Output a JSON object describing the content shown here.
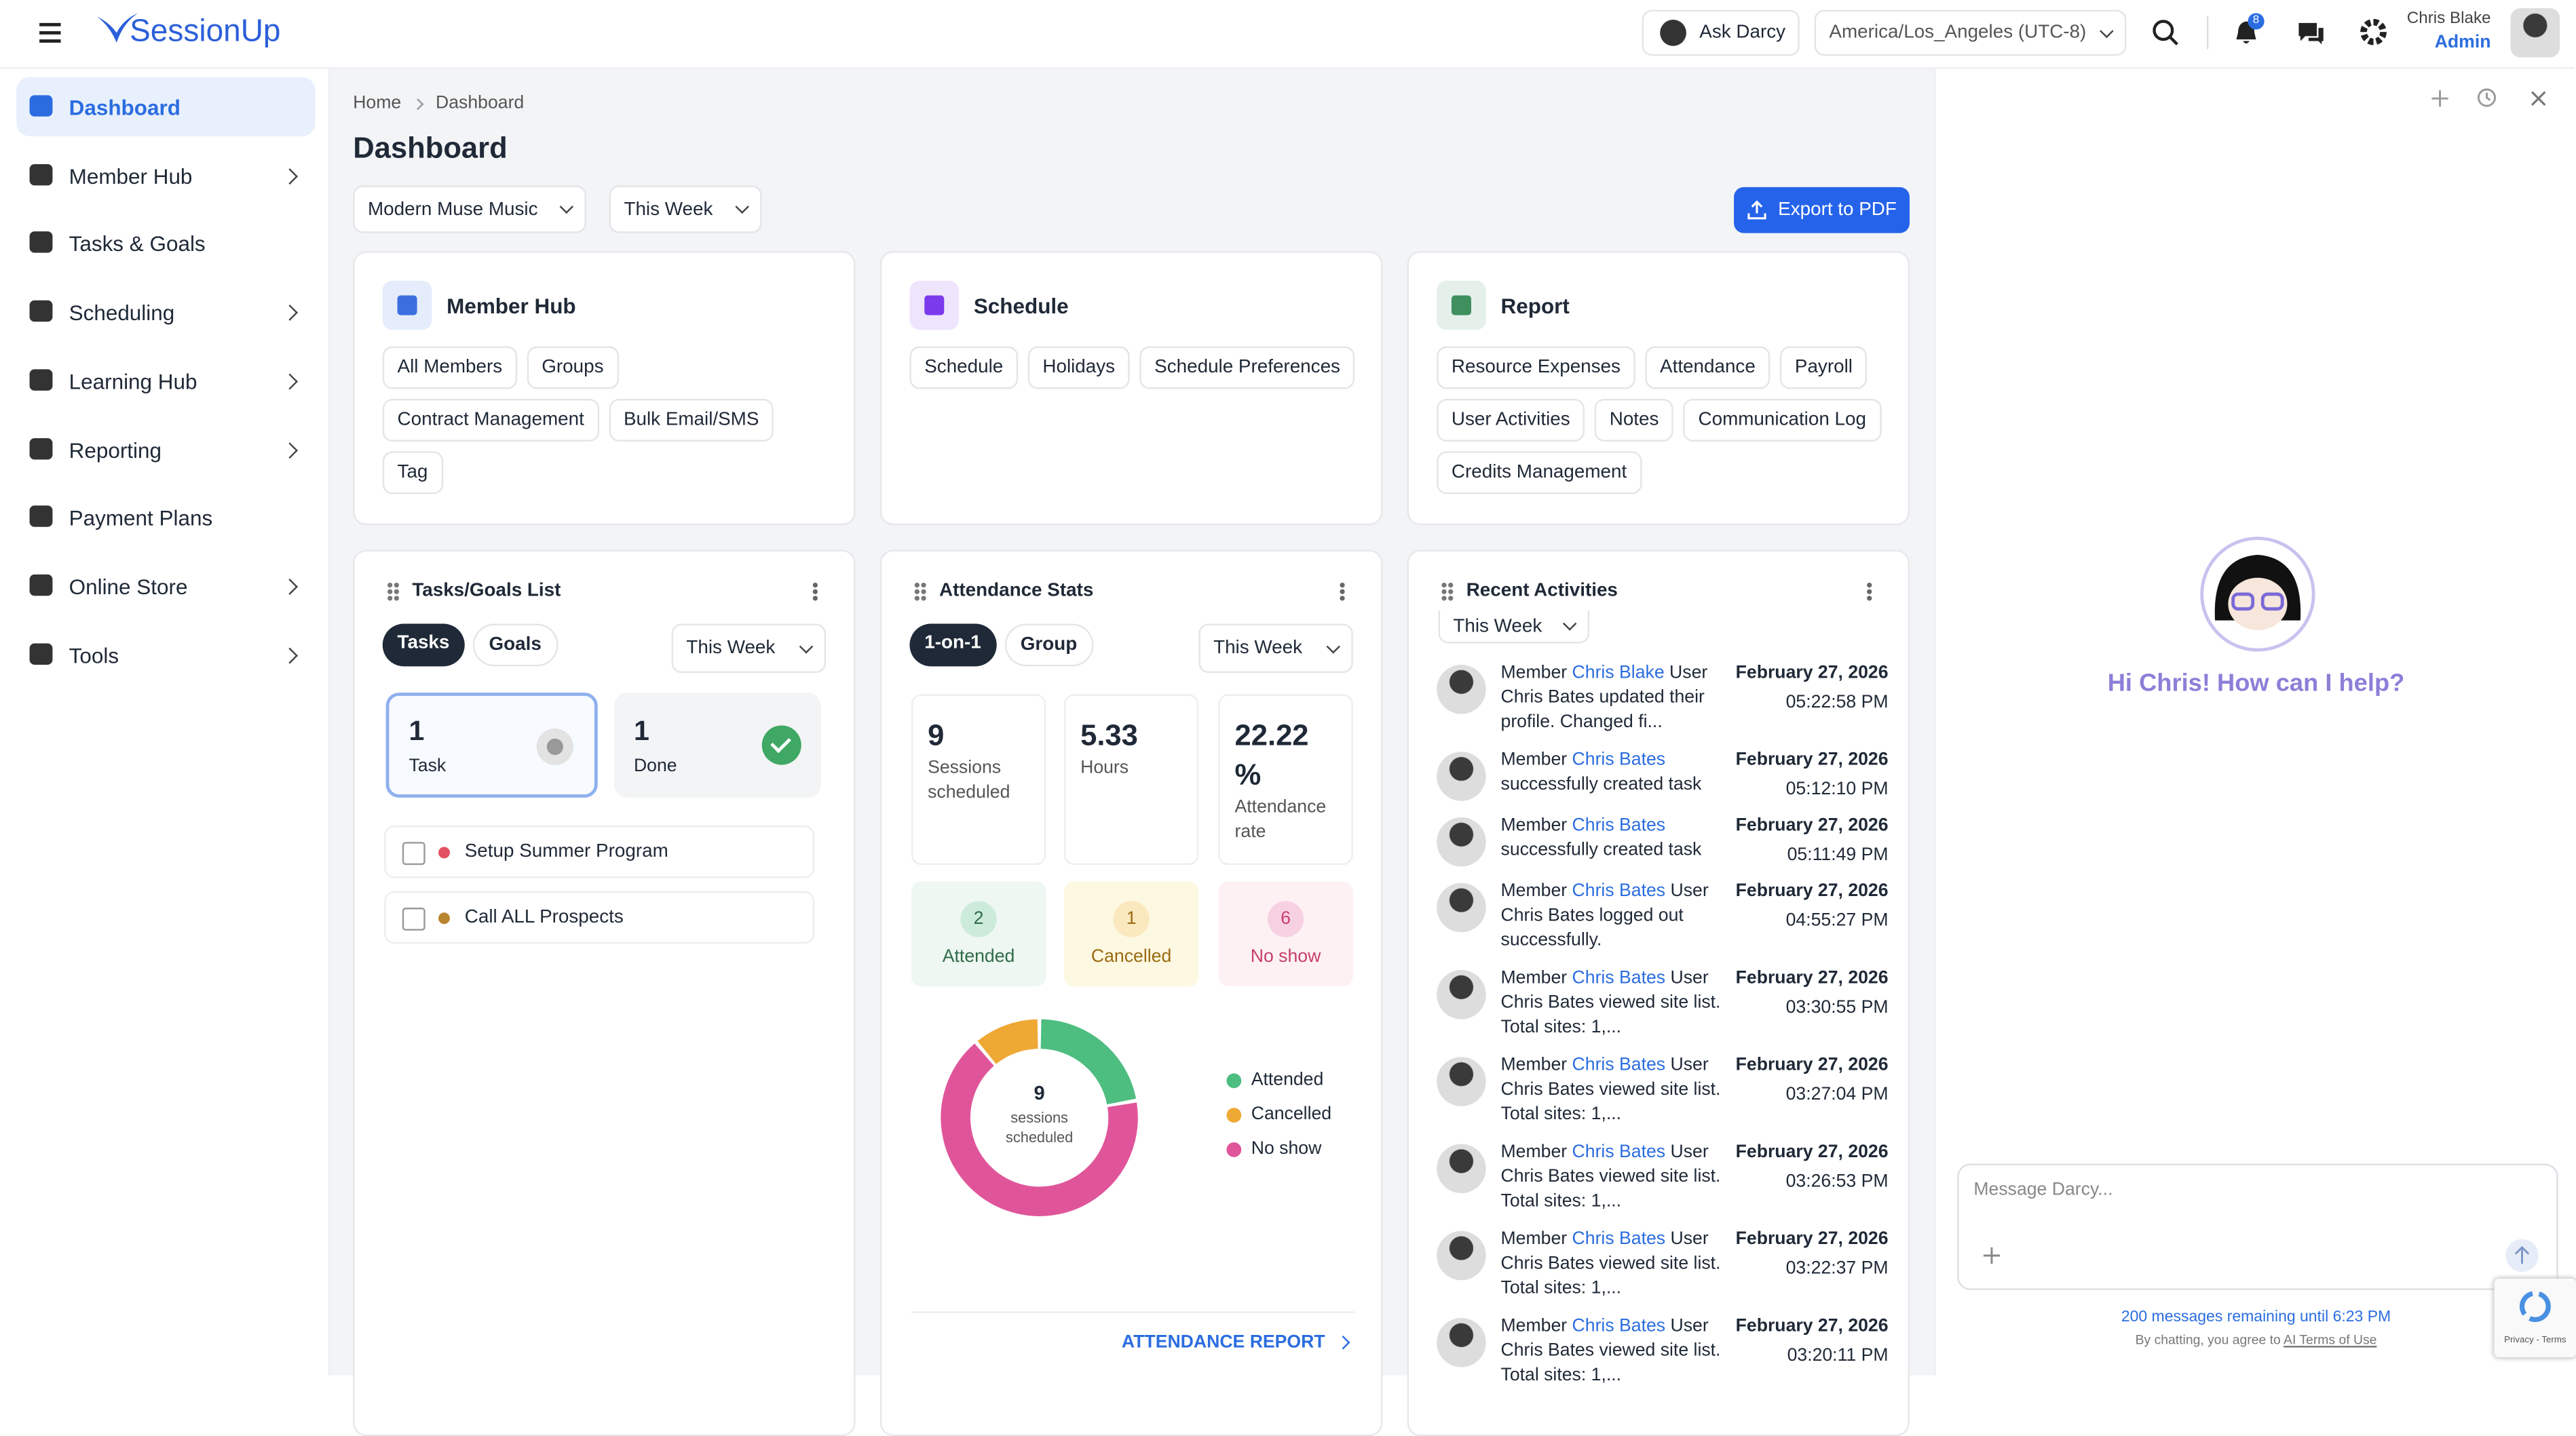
{
  "header": {
    "brand": "SessionUp",
    "ask": "Ask Darcy",
    "timezone": "America/Los_Angeles (UTC-8)",
    "notifications": 8,
    "user_name": "Chris Blake",
    "user_role": "Admin"
  },
  "sidebar": [
    {
      "label": "Dashboard",
      "active": true,
      "expandable": false
    },
    {
      "label": "Member Hub",
      "active": false,
      "expandable": true
    },
    {
      "label": "Tasks & Goals",
      "active": false,
      "expandable": false
    },
    {
      "label": "Scheduling",
      "active": false,
      "expandable": true
    },
    {
      "label": "Learning Hub",
      "active": false,
      "expandable": true
    },
    {
      "label": "Reporting",
      "active": false,
      "expandable": true
    },
    {
      "label": "Payment Plans",
      "active": false,
      "expandable": false
    },
    {
      "label": "Online Store",
      "active": false,
      "expandable": true
    },
    {
      "label": "Tools",
      "active": false,
      "expandable": true
    }
  ],
  "breadcrumb": [
    "Home",
    "Dashboard"
  ],
  "page_title": "Dashboard",
  "filters": {
    "organization": "Modern Muse Music",
    "period": "This Week",
    "export": "Export to PDF"
  },
  "quick_links": [
    {
      "title": "Member Hub",
      "color": "#3b6fe0",
      "links": [
        "All Members",
        "Groups",
        "Contract Management",
        "Bulk Email/SMS",
        "Tag"
      ]
    },
    {
      "title": "Schedule",
      "color": "#7c3aed",
      "links": [
        "Schedule",
        "Holidays",
        "Schedule Preferences"
      ]
    },
    {
      "title": "Report",
      "color": "#3f8f5f",
      "links": [
        "Resource Expenses",
        "Attendance",
        "Payroll",
        "User Activities",
        "Notes",
        "Communication Log",
        "Credits Management"
      ]
    }
  ],
  "tasks": {
    "title": "Tasks/Goals List",
    "tabs": [
      "Tasks",
      "Goals"
    ],
    "period": "This Week",
    "task_count": 1,
    "task_label": "Task",
    "done_count": 1,
    "done_label": "Done",
    "items": [
      {
        "label": "Setup Summer Program",
        "color": "#e05260"
      },
      {
        "label": "Call ALL Prospects",
        "color": "#b8862f"
      }
    ]
  },
  "attendance": {
    "title": "Attendance Stats",
    "tabs": [
      "1-on-1",
      "Group"
    ],
    "period": "This Week",
    "stats": [
      {
        "value": "9",
        "label": "Sessions scheduled"
      },
      {
        "value": "5.33",
        "label": "Hours"
      },
      {
        "value": "22.22 %",
        "label": "Attendance rate"
      }
    ],
    "breakdown": [
      {
        "label": "Attended",
        "value": 2,
        "color": "#4dbd80"
      },
      {
        "label": "Cancelled",
        "value": 1,
        "color": "#eea834"
      },
      {
        "label": "No show",
        "value": 6,
        "color": "#e0559a"
      }
    ],
    "center_value": 9,
    "center_label": "sessions scheduled",
    "report_link": "ATTENDANCE REPORT"
  },
  "activities": {
    "title": "Recent Activities",
    "period": "This Week",
    "items": [
      {
        "prefix": "Member",
        "name": "Chris Blake",
        "text": "User Chris Bates updated their profile. Changed fi...",
        "date": "February 27, 2026",
        "time": "05:22:58 PM"
      },
      {
        "prefix": "Member",
        "name": "Chris Bates",
        "text": "successfully created task",
        "date": "February 27, 2026",
        "time": "05:12:10 PM"
      },
      {
        "prefix": "Member",
        "name": "Chris Bates",
        "text": "successfully created task",
        "date": "February 27, 2026",
        "time": "05:11:49 PM"
      },
      {
        "prefix": "Member",
        "name": "Chris Bates",
        "text": "User Chris Bates logged out successfully.",
        "date": "February 27, 2026",
        "time": "04:55:27 PM"
      },
      {
        "prefix": "Member",
        "name": "Chris Bates",
        "text": "User Chris Bates viewed site list. Total sites: 1,...",
        "date": "February 27, 2026",
        "time": "03:30:55 PM"
      },
      {
        "prefix": "Member",
        "name": "Chris Bates",
        "text": "User Chris Bates viewed site list. Total sites: 1,...",
        "date": "February 27, 2026",
        "time": "03:27:04 PM"
      },
      {
        "prefix": "Member",
        "name": "Chris Bates",
        "text": "User Chris Bates viewed site list. Total sites: 1,...",
        "date": "February 27, 2026",
        "time": "03:26:53 PM"
      },
      {
        "prefix": "Member",
        "name": "Chris Bates",
        "text": "User Chris Bates viewed site list. Total sites: 1,...",
        "date": "February 27, 2026",
        "time": "03:22:37 PM"
      },
      {
        "prefix": "Member",
        "name": "Chris Bates",
        "text": "User Chris Bates viewed site list. Total sites: 1,...",
        "date": "February 27, 2026",
        "time": "03:20:11 PM"
      }
    ]
  },
  "chat": {
    "greeting": "Hi Chris! How can I help?",
    "placeholder": "Message Darcy...",
    "remaining": "200 messages remaining until 6:23 PM",
    "terms_prefix": "By chatting, you agree to",
    "terms_link": "AI Terms of Use",
    "captcha": "Privacy - Terms"
  }
}
